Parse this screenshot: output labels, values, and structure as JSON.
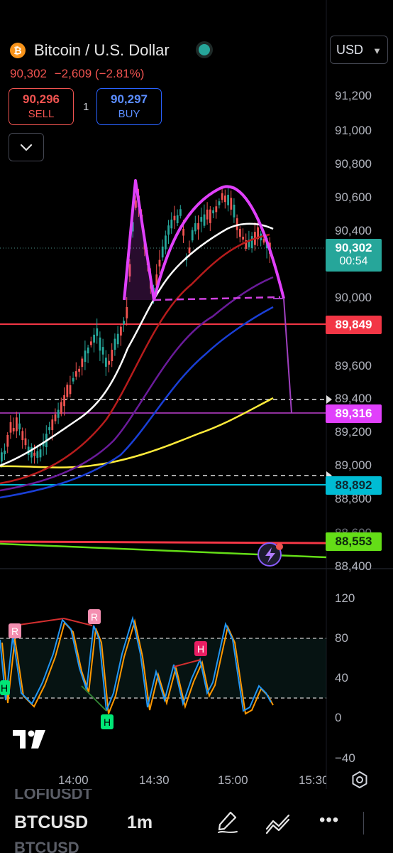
{
  "header": {
    "coin_glyph": "₿",
    "title": "Bitcoin / U.S. Dollar",
    "last_price": "90,302",
    "change": "−2,609 (−2.81%)",
    "currency": "USD",
    "live_indicator_color": "#26a69a"
  },
  "trade": {
    "sell_price": "90,296",
    "sell_label": "SELL",
    "buy_price": "90,297",
    "buy_label": "BUY",
    "spread": "1"
  },
  "price_axis": {
    "labels": [
      "91,200",
      "91,000",
      "90,800",
      "90,600",
      "90,400",
      "90,000",
      "89,600",
      "89,400",
      "89,200",
      "89,000",
      "88,800",
      "88,600",
      "88,400"
    ]
  },
  "price_tags": {
    "current_price": "90,302",
    "countdown": "00:54",
    "red_level": "89,849",
    "magenta_level": "89,316",
    "cyan_level": "88,892",
    "green_level": "88,553"
  },
  "oscillator": {
    "axis_labels": [
      "120",
      "80",
      "40",
      "0",
      "−40"
    ],
    "markers": [
      {
        "text": "R",
        "kind": "pink"
      },
      {
        "text": "R",
        "kind": "pink"
      },
      {
        "text": "H",
        "kind": "red"
      },
      {
        "text": "H",
        "kind": "green"
      },
      {
        "text": "H",
        "kind": "green"
      }
    ]
  },
  "time_axis": {
    "labels": [
      "14:00",
      "14:30",
      "15:00",
      "15:30"
    ]
  },
  "bottom_bar": {
    "symbol_prev": "LOFIUSDT",
    "symbol": "BTCUSD",
    "symbol_next": "BTCUSD",
    "interval": "1m",
    "more_glyph": "•••",
    "icons": [
      "pen-icon",
      "indicator-icon",
      "more-icon"
    ]
  },
  "colors": {
    "up": "#26a69a",
    "down": "#ef5350",
    "pattern": "#e040fb",
    "ema_white": "#ffffff",
    "ema_red": "#b71c1c",
    "ema_purple": "#6a1b9a",
    "ema_blue": "#1a3fd6",
    "ema_yellow": "#ffeb3b",
    "level_red": "#f23645",
    "level_magenta": "#e040fb",
    "level_cyan": "#00bcd4",
    "level_green": "#64dd17"
  }
}
